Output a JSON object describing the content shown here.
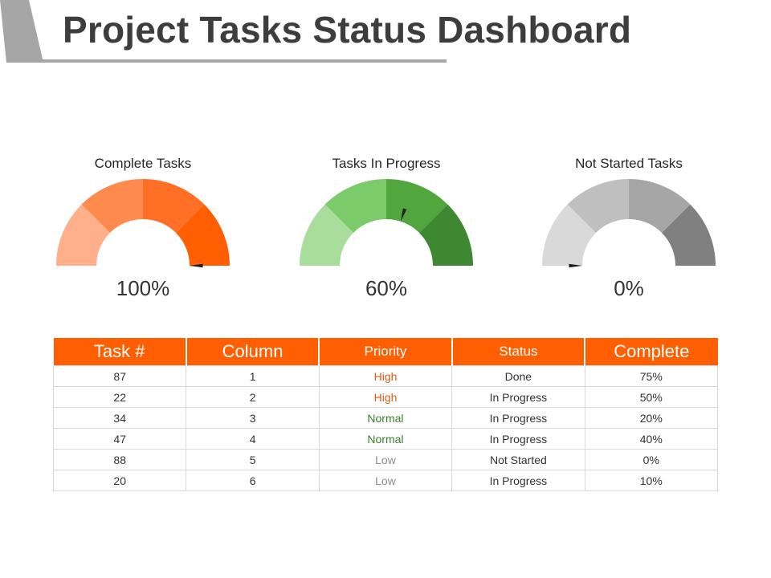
{
  "page": {
    "title": "Project Tasks Status Dashboard"
  },
  "colors": {
    "accent": "#ff5f01",
    "priority_high": "#e05a12",
    "priority_normal": "#3a7f2b",
    "priority_low": "#8c8c8c"
  },
  "chart_data": [
    {
      "type": "gauge",
      "title": "Complete Tasks",
      "value": 100,
      "value_label": "100%",
      "range": [
        0,
        100
      ],
      "segment_colors": [
        "#ffb08a",
        "#ff8a4d",
        "#ff6f26",
        "#ff5f01"
      ]
    },
    {
      "type": "gauge",
      "title": "Tasks In Progress",
      "value": 60,
      "value_label": "60%",
      "range": [
        0,
        100
      ],
      "segment_colors": [
        "#a8dd9b",
        "#7ccb6a",
        "#52a63e",
        "#3d8831"
      ]
    },
    {
      "type": "gauge",
      "title": "Not Started Tasks",
      "value": 0,
      "value_label": "0%",
      "range": [
        0,
        100
      ],
      "segment_colors": [
        "#d9d9d9",
        "#bfbfbf",
        "#a6a6a6",
        "#808080"
      ]
    },
    {
      "type": "table",
      "columns": [
        "Task #",
        "Column",
        "Priority",
        "Status",
        "Complete"
      ],
      "rows": [
        {
          "task": "87",
          "column": "1",
          "priority": "High",
          "priority_level": "high",
          "status": "Done",
          "complete": "75%"
        },
        {
          "task": "22",
          "column": "2",
          "priority": "High",
          "priority_level": "high",
          "status": "In Progress",
          "complete": "50%"
        },
        {
          "task": "34",
          "column": "3",
          "priority": "Normal",
          "priority_level": "normal",
          "status": "In Progress",
          "complete": "20%"
        },
        {
          "task": "47",
          "column": "4",
          "priority": "Normal",
          "priority_level": "normal",
          "status": "In Progress",
          "complete": "40%"
        },
        {
          "task": "88",
          "column": "5",
          "priority": "Low",
          "priority_level": "low",
          "status": "Not Started",
          "complete": "0%"
        },
        {
          "task": "20",
          "column": "6",
          "priority": "Low",
          "priority_level": "low",
          "status": "In Progress",
          "complete": "10%"
        }
      ]
    }
  ]
}
